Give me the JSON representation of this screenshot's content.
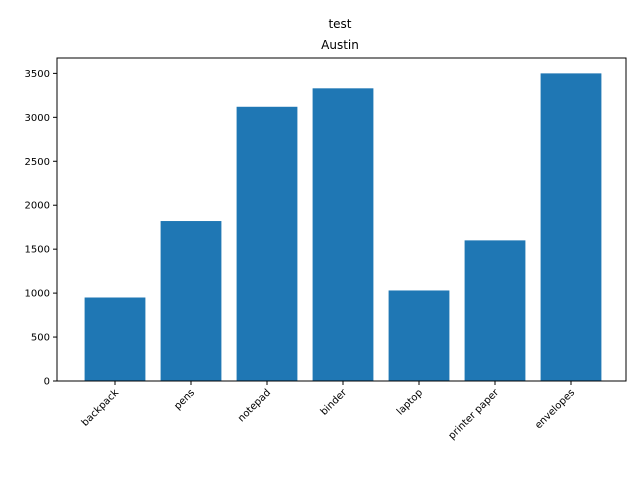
{
  "chart_data": {
    "type": "bar",
    "title": "test",
    "subtitle": "Austin",
    "xlabel": "",
    "ylabel": "",
    "categories": [
      "backpack",
      "pens",
      "notepad",
      "binder",
      "laptop",
      "printer paper",
      "envelopes"
    ],
    "values": [
      950,
      1820,
      3120,
      3330,
      1030,
      1600,
      3500
    ],
    "ylim": [
      0,
      3675
    ],
    "yticks": [
      0,
      500,
      1000,
      1500,
      2000,
      2500,
      3000,
      3500
    ],
    "ytick_labels": [
      "0",
      "500",
      "1000",
      "1500",
      "2000",
      "2500",
      "3000",
      "3500"
    ],
    "grid": false,
    "bar_color": "#1f77b4"
  }
}
